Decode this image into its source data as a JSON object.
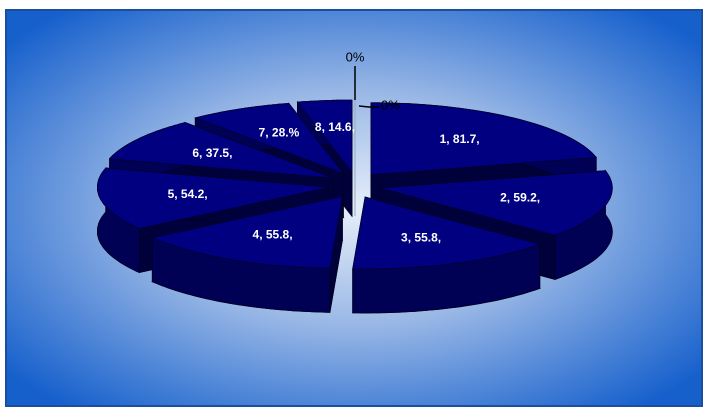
{
  "chart_data": {
    "type": "pie3d",
    "values": [
      81.7,
      59.2,
      55.8,
      55.8,
      54.2,
      37.5,
      28,
      14.6,
      0,
      0
    ],
    "value_labels": [
      "1, 81.7,",
      "2, 59.2,",
      "3, 55.8,",
      "4, 55.8,",
      "5, 54.2,",
      "6, 37.5,",
      "7, 28.%",
      "8, 14.6,",
      "0%",
      "0%"
    ],
    "color": "#000080"
  }
}
